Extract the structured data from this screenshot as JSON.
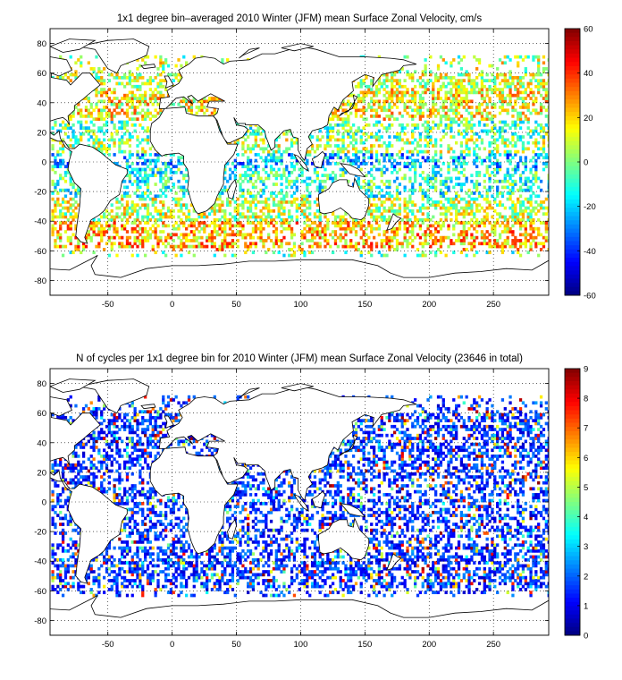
{
  "chart_data": [
    {
      "type": "heatmap",
      "title": "1x1 degree bin–averaged 2010 Winter (JFM) mean Surface Zonal Velocity, cm/s",
      "xlim": [
        -95,
        293
      ],
      "ylim": [
        -90,
        90
      ],
      "x_ticks": [
        -50,
        0,
        50,
        100,
        150,
        200,
        250
      ],
      "y_ticks": [
        80,
        60,
        40,
        20,
        0,
        -20,
        -40,
        -60,
        -80
      ],
      "x_tick_labels": [
        "-50",
        "0",
        "50",
        "100",
        "150",
        "200",
        "250"
      ],
      "y_tick_labels": [
        "80",
        "60",
        "40",
        "20",
        "0",
        "-20",
        "-40",
        "-60",
        "-80"
      ],
      "colorbar": {
        "range": [
          -60,
          60
        ],
        "ticks": [
          60,
          40,
          20,
          0,
          -20,
          -40,
          -60
        ],
        "tick_labels": [
          "60",
          "40",
          "20",
          "0",
          "-20",
          "-40",
          "-60"
        ],
        "colormap": "jet"
      },
      "grid": true,
      "zonal_bands": [
        {
          "lat": [
            -60,
            -40
          ],
          "mean_value": 22
        },
        {
          "lat": [
            -40,
            -25
          ],
          "mean_value": 8
        },
        {
          "lat": [
            -25,
            -5
          ],
          "mean_value": -10
        },
        {
          "lat": [
            -5,
            5
          ],
          "mean_value": -22
        },
        {
          "lat": [
            5,
            15
          ],
          "mean_value": 5
        },
        {
          "lat": [
            15,
            28
          ],
          "mean_value": -4
        },
        {
          "lat": [
            28,
            50
          ],
          "mean_value": 15
        },
        {
          "lat": [
            50,
            70
          ],
          "mean_value": 8
        }
      ]
    },
    {
      "type": "heatmap",
      "title": "N of cycles per 1x1 degree bin for 2010 Winter (JFM) mean Surface Zonal Velocity (23646 in total)",
      "xlim": [
        -95,
        293
      ],
      "ylim": [
        -90,
        90
      ],
      "x_ticks": [
        -50,
        0,
        50,
        100,
        150,
        200,
        250
      ],
      "y_ticks": [
        80,
        60,
        40,
        20,
        0,
        -20,
        -40,
        -60,
        -80
      ],
      "x_tick_labels": [
        "-50",
        "0",
        "50",
        "100",
        "150",
        "200",
        "250"
      ],
      "y_tick_labels": [
        "80",
        "60",
        "40",
        "20",
        "0",
        "-20",
        "-40",
        "-60",
        "-80"
      ],
      "colorbar": {
        "range": [
          0,
          9
        ],
        "ticks": [
          9,
          8,
          7,
          6,
          5,
          4,
          3,
          2,
          1,
          0
        ],
        "tick_labels": [
          "9",
          "8",
          "7",
          "6",
          "5",
          "4",
          "3",
          "2",
          "1",
          "0"
        ],
        "colormap": "jet"
      },
      "grid": true,
      "total": 23646,
      "typical_value": 1.5
    }
  ]
}
